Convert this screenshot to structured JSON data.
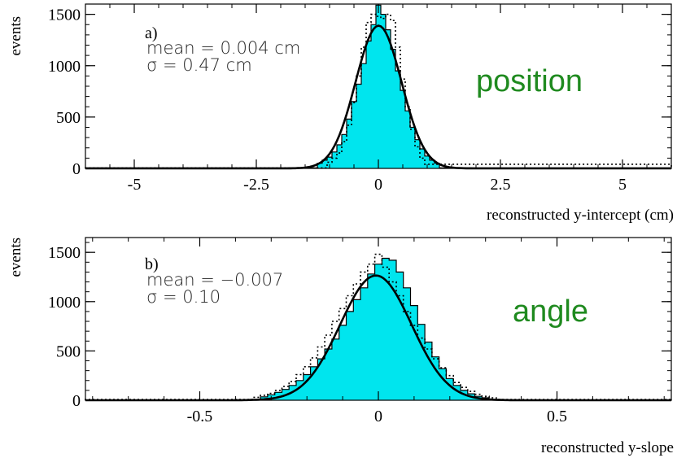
{
  "colors": {
    "fill": "#00e5ee",
    "outline": "#000000",
    "fit": "#000000",
    "dotted": "#000000",
    "big_label": "#1f8a1f"
  },
  "chart_data": [
    {
      "type": "histogram",
      "panel_label": "a)",
      "stats": {
        "mean": "mean = 0.004 cm",
        "sigma": "σ = 0.47 cm"
      },
      "big_label": "position",
      "xlabel": "reconstructed y-intercept (cm)",
      "ylabel": "events",
      "xlim": [
        -6,
        6
      ],
      "ylim": [
        0,
        1600
      ],
      "xticks": [
        -5,
        -2.5,
        0,
        2.5,
        5
      ],
      "xtick_labels": [
        "-5",
        "-2.5",
        "0",
        "2.5",
        "5"
      ],
      "yticks": [
        0,
        500,
        1000,
        1500
      ],
      "ytick_labels": [
        "0",
        "500",
        "1000",
        "1500"
      ],
      "minor_x": 0.5,
      "minor_y": 100,
      "grid": false,
      "series": [
        {
          "kind": "filled-histogram",
          "bin_edges": [
            -6,
            -1.25,
            -1.15,
            -1.05,
            -0.95,
            -0.85,
            -0.75,
            -0.65,
            -0.55,
            -0.45,
            -0.35,
            -0.25,
            -0.15,
            -0.05,
            0.05,
            0.15,
            0.25,
            0.35,
            0.45,
            0.55,
            0.65,
            0.75,
            0.85,
            0.95,
            1.05,
            1.15,
            1.25,
            6
          ],
          "values": [
            5,
            50,
            80,
            110,
            160,
            230,
            330,
            480,
            650,
            820,
            1020,
            1240,
            1400,
            1590,
            1500,
            1350,
            1160,
            950,
            760,
            560,
            400,
            280,
            190,
            120,
            80,
            50,
            5
          ]
        },
        {
          "kind": "gaussian-fit",
          "amplitude": 1390,
          "mean": 0.004,
          "sigma": 0.47
        },
        {
          "kind": "dotted-histogram",
          "bin_edges": [
            -6,
            -1.05,
            -0.95,
            -0.85,
            -0.75,
            -0.65,
            -0.55,
            -0.45,
            -0.35,
            -0.25,
            -0.15,
            -0.05,
            0.05,
            0.15,
            0.25,
            0.35,
            0.45,
            0.55,
            0.65,
            0.75,
            0.85,
            0.95,
            6
          ],
          "values": [
            5,
            60,
            100,
            150,
            260,
            420,
            640,
            900,
            1180,
            1420,
            1500,
            1480,
            1460,
            1500,
            1440,
            1180,
            870,
            600,
            380,
            210,
            100,
            40
          ]
        }
      ]
    },
    {
      "type": "histogram",
      "panel_label": "b)",
      "stats": {
        "mean": "mean = −0.007",
        "sigma": "σ = 0.10"
      },
      "big_label": "angle",
      "xlabel": "reconstructed y-slope",
      "ylabel": "events",
      "xlim": [
        -0.82,
        0.82
      ],
      "ylim": [
        0,
        1650
      ],
      "xticks": [
        -0.5,
        0,
        0.5
      ],
      "xtick_labels": [
        "-0.5",
        "0",
        "0.5"
      ],
      "yticks": [
        0,
        500,
        1000,
        1500
      ],
      "ytick_labels": [
        "0",
        "500",
        "1000",
        "1500"
      ],
      "minor_x": 0.1,
      "minor_y": 100,
      "grid": false,
      "series": [
        {
          "kind": "filled-histogram",
          "bin_edges": [
            -0.82,
            -0.33,
            -0.31,
            -0.29,
            -0.27,
            -0.25,
            -0.23,
            -0.21,
            -0.19,
            -0.17,
            -0.15,
            -0.13,
            -0.11,
            -0.09,
            -0.07,
            -0.05,
            -0.03,
            -0.01,
            0.01,
            0.03,
            0.05,
            0.07,
            0.09,
            0.11,
            0.13,
            0.15,
            0.17,
            0.19,
            0.21,
            0.23,
            0.25,
            0.27,
            0.29,
            0.31,
            0.82
          ],
          "values": [
            3,
            35,
            55,
            80,
            110,
            150,
            200,
            260,
            340,
            420,
            520,
            620,
            760,
            900,
            1020,
            1140,
            1280,
            1380,
            1440,
            1420,
            1300,
            1140,
            960,
            770,
            590,
            440,
            320,
            220,
            150,
            100,
            65,
            40,
            25,
            3
          ]
        },
        {
          "kind": "gaussian-fit",
          "amplitude": 1265,
          "mean": -0.007,
          "sigma": 0.1
        },
        {
          "kind": "dotted-histogram",
          "bin_edges": [
            -0.82,
            -0.35,
            -0.33,
            -0.31,
            -0.29,
            -0.27,
            -0.25,
            -0.23,
            -0.21,
            -0.19,
            -0.17,
            -0.15,
            -0.13,
            -0.11,
            -0.09,
            -0.07,
            -0.05,
            -0.03,
            -0.01,
            0.01,
            0.03,
            0.05,
            0.07,
            0.09,
            0.11,
            0.13,
            0.15,
            0.17,
            0.19,
            0.21,
            0.23,
            0.25,
            0.27,
            0.29,
            0.31,
            0.33,
            0.82
          ],
          "values": [
            8,
            30,
            50,
            70,
            100,
            140,
            190,
            260,
            340,
            430,
            540,
            660,
            800,
            930,
            1060,
            1180,
            1300,
            1380,
            1480,
            1350,
            1200,
            1060,
            900,
            760,
            630,
            520,
            420,
            330,
            250,
            180,
            130,
            90,
            60,
            40,
            25,
            8
          ]
        }
      ]
    }
  ]
}
